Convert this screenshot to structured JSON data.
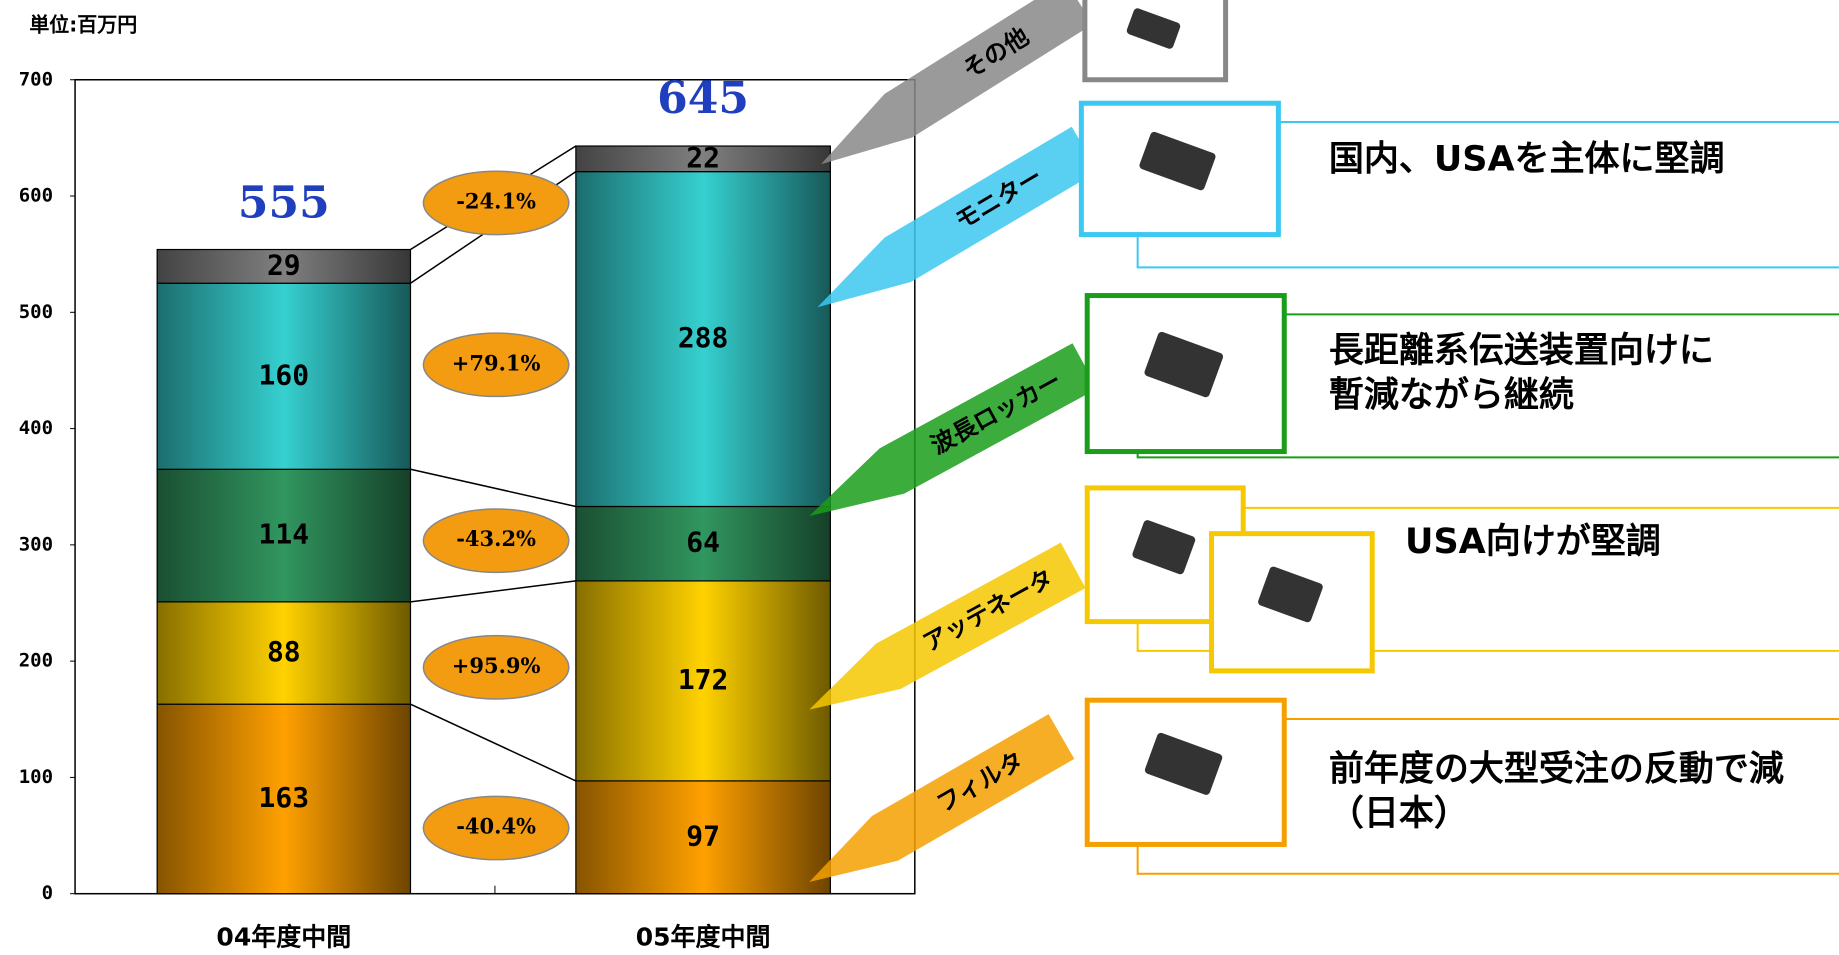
{
  "chart_data": {
    "type": "bar",
    "stacked": true,
    "unit_label": "単位:百万円",
    "categories": [
      "04年度中間",
      "05年度中間"
    ],
    "totals": [
      555,
      645
    ],
    "ylim": [
      0,
      700
    ],
    "yticks": [
      0,
      100,
      200,
      300,
      400,
      500,
      600,
      700
    ],
    "series": [
      {
        "name": "フィルタ",
        "color": "#f39800",
        "values": [
          163,
          97
        ],
        "change": "-40.4%",
        "note": [
          "前年度の大型受注の反動で減",
          "（日本）"
        ]
      },
      {
        "name": "アッテネータ",
        "color": "#f5c800",
        "values": [
          88,
          172
        ],
        "change": "+95.9%",
        "note": [
          "USA向けが堅調"
        ]
      },
      {
        "name": "波長ロッカー",
        "color": "#2f8f5a",
        "values": [
          114,
          64
        ],
        "change": "-43.2%",
        "note": [
          "長距離系伝送装置向けに",
          "暫減ながら継続"
        ]
      },
      {
        "name": "モニター",
        "color": "#33c6c6",
        "values": [
          160,
          288
        ],
        "change": "+79.1%",
        "note": [
          "国内、USAを主体に堅調"
        ]
      },
      {
        "name": "その他",
        "color": "#7a7a7a",
        "values": [
          29,
          22
        ],
        "change": "-24.1%"
      }
    ]
  }
}
